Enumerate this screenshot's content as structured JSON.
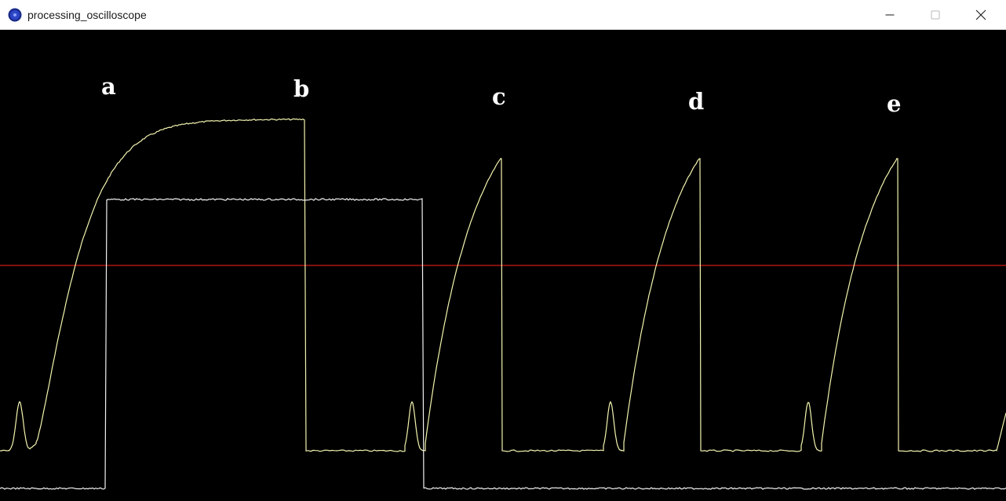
{
  "window": {
    "title": "processing_oscilloscope"
  },
  "controls": {
    "minimize_icon": "minimize-icon",
    "maximize_icon": "maximize-icon",
    "close_icon": "close-icon"
  },
  "scope": {
    "background": "#000000",
    "reference_line_color": "#ff2020",
    "trace_yellow_color": "#f4f4b0",
    "trace_white_color": "#f2f2f2",
    "markers": [
      "a",
      "b",
      "c",
      "d",
      "e"
    ]
  }
}
